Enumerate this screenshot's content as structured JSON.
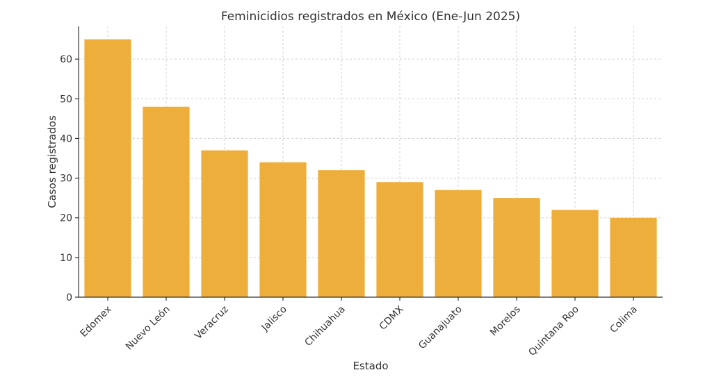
{
  "chart_data": {
    "type": "bar",
    "title": "Feminicidios registrados en México (Ene-Jun 2025)",
    "xlabel": "Estado",
    "ylabel": "Casos registrados",
    "categories": [
      "Edomex",
      "Nuevo León",
      "Veracruz",
      "Jalisco",
      "Chihuahua",
      "CDMX",
      "Guanajuato",
      "Morelos",
      "Quintana Roo",
      "Colima"
    ],
    "values": [
      65,
      48,
      37,
      34,
      32,
      29,
      27,
      25,
      22,
      20
    ],
    "ylim": [
      0,
      68.25
    ],
    "yticks": [
      0,
      10,
      20,
      30,
      40,
      50,
      60
    ],
    "grid": true,
    "bar_color": "#EEAE3C"
  }
}
